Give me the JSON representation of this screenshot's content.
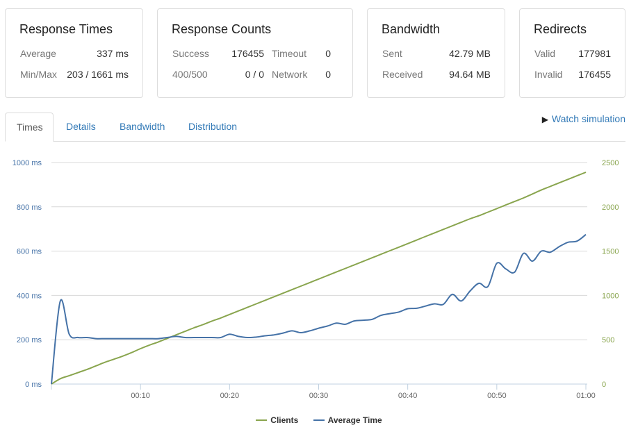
{
  "cards": {
    "response_times": {
      "title": "Response Times",
      "average_label": "Average",
      "average_value": "337 ms",
      "minmax_label": "Min/Max",
      "minmax_value": "203 / 1661 ms"
    },
    "response_counts": {
      "title": "Response Counts",
      "success_label": "Success",
      "success_value": "176455",
      "timeout_label": "Timeout",
      "timeout_value": "0",
      "error_label": "400/500",
      "error_value": "0 / 0",
      "network_label": "Network",
      "network_value": "0"
    },
    "bandwidth": {
      "title": "Bandwidth",
      "sent_label": "Sent",
      "sent_value": "42.79 MB",
      "received_label": "Received",
      "received_value": "94.64 MB"
    },
    "redirects": {
      "title": "Redirects",
      "valid_label": "Valid",
      "valid_value": "177981",
      "invalid_label": "Invalid",
      "invalid_value": "176455"
    }
  },
  "tabs": [
    "Times",
    "Details",
    "Bandwidth",
    "Distribution"
  ],
  "active_tab": "Times",
  "watch_simulation": "Watch simulation",
  "chart_data": {
    "type": "line",
    "x": [
      0,
      1,
      2,
      3,
      4,
      5,
      6,
      7,
      8,
      9,
      10,
      11,
      12,
      13,
      14,
      15,
      16,
      17,
      18,
      19,
      20,
      21,
      22,
      23,
      24,
      25,
      26,
      27,
      28,
      29,
      30,
      31,
      32,
      33,
      34,
      35,
      36,
      37,
      38,
      39,
      40,
      41,
      42,
      43,
      44,
      45,
      46,
      47,
      48,
      49,
      50,
      51,
      52,
      53,
      54,
      55,
      56,
      57,
      58,
      59,
      60
    ],
    "xticks": [
      10,
      20,
      30,
      40,
      50,
      60
    ],
    "xtick_labels": [
      "00:10",
      "00:20",
      "00:30",
      "00:40",
      "00:50",
      "01:00"
    ],
    "y_left_ticks": [
      0,
      200,
      400,
      600,
      800,
      1000
    ],
    "y_left_labels": [
      "0 ms",
      "200 ms",
      "400 ms",
      "600 ms",
      "800 ms",
      "1000 ms"
    ],
    "y_left_lim": [
      0,
      1000
    ],
    "y_right_ticks": [
      0,
      500,
      1000,
      1500,
      2000,
      2500
    ],
    "y_right_labels": [
      "0",
      "500",
      "1000",
      "1500",
      "2000",
      "2500"
    ],
    "y_right_lim": [
      0,
      2500
    ],
    "series": [
      {
        "name": "Clients",
        "axis": "right",
        "color": "#89a54e",
        "values": [
          0,
          60,
          95,
          130,
          165,
          205,
          245,
          280,
          315,
          355,
          400,
          440,
          475,
          515,
          555,
          595,
          635,
          670,
          710,
          745,
          785,
          825,
          865,
          905,
          945,
          985,
          1025,
          1065,
          1105,
          1145,
          1185,
          1225,
          1265,
          1305,
          1345,
          1385,
          1425,
          1465,
          1505,
          1545,
          1585,
          1625,
          1665,
          1705,
          1745,
          1785,
          1825,
          1865,
          1900,
          1940,
          1980,
          2020,
          2060,
          2100,
          2145,
          2190,
          2230,
          2270,
          2310,
          2350,
          2390
        ]
      },
      {
        "name": "Average Time",
        "axis": "left",
        "color": "#4572a7",
        "values": [
          0,
          375,
          225,
          210,
          210,
          205,
          205,
          205,
          205,
          205,
          205,
          205,
          205,
          210,
          215,
          210,
          210,
          210,
          210,
          210,
          225,
          215,
          210,
          212,
          218,
          222,
          230,
          240,
          232,
          240,
          252,
          262,
          275,
          270,
          285,
          288,
          292,
          310,
          318,
          325,
          340,
          342,
          352,
          362,
          360,
          405,
          375,
          420,
          455,
          440,
          545,
          520,
          505,
          590,
          555,
          600,
          595,
          620,
          640,
          645,
          675
        ]
      }
    ],
    "grid": true,
    "legend_position": "bottom-center"
  }
}
